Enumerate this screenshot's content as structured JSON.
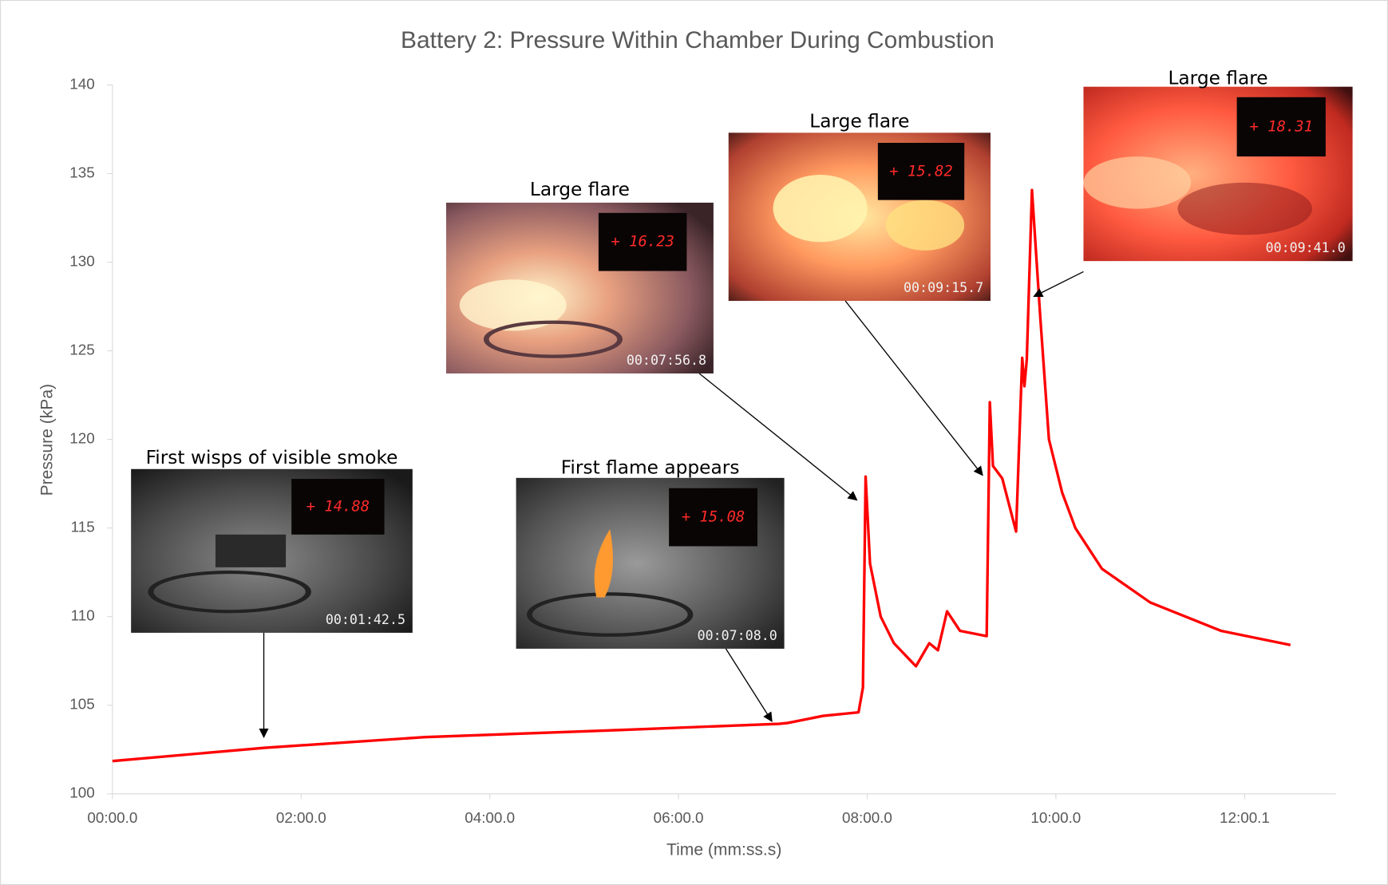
{
  "chart_data": {
    "type": "line",
    "title": "Battery 2: Pressure Within Chamber During Combustion",
    "x_label": "Time (mm:ss.s)",
    "y_label": "Pressure (kPa)",
    "color": "#ff0000",
    "grid": false,
    "xlim": [
      0,
      778
    ],
    "ylim": [
      100,
      140
    ],
    "xticks": [
      {
        "value": 0,
        "label": "00:00.0"
      },
      {
        "value": 120,
        "label": "02:00.0"
      },
      {
        "value": 240,
        "label": "04:00.0"
      },
      {
        "value": 360,
        "label": "06:00.0"
      },
      {
        "value": 480,
        "label": "08:00.0"
      },
      {
        "value": 600,
        "label": "10:00.0"
      },
      {
        "value": 720.1,
        "label": "12:00.1"
      }
    ],
    "yticks": [
      100,
      105,
      110,
      115,
      120,
      125,
      130,
      135,
      140
    ],
    "x": [
      0,
      97,
      198.7,
      322.5,
      423.9,
      429.5,
      452,
      474.5,
      477.3,
      479,
      481.8,
      488.6,
      497,
      511,
      519.5,
      525,
      530.8,
      539,
      556,
      558,
      560,
      565.9,
      574.7,
      578.6,
      580,
      581.5,
      584.8,
      590,
      595.6,
      604,
      612.4,
      629.3,
      660,
      705,
      749.2
    ],
    "values": [
      101.85,
      102.6,
      103.2,
      103.6,
      103.95,
      104.0,
      104.4,
      104.6,
      106,
      117.9,
      113,
      110,
      108.5,
      107.2,
      108.5,
      108.1,
      110.3,
      109.2,
      108.9,
      122.1,
      118.5,
      117.8,
      114.8,
      124.6,
      123.0,
      124.5,
      134.07,
      127,
      120,
      117,
      115,
      112.7,
      110.8,
      109.2,
      108.4
    ],
    "annotations": [
      {
        "label": "First wisps of visible smoke",
        "display": "+ 14.88",
        "timestamp": "00:01:42.5"
      },
      {
        "label": "First flame appears",
        "display": "+ 15.08",
        "timestamp": "00:07:08.0"
      },
      {
        "label": "Large flare",
        "display": "+ 16.23",
        "timestamp": "00:07:56.8"
      },
      {
        "label": "Large flare",
        "display": "+ 15.82",
        "timestamp": "00:09:15.7"
      },
      {
        "label": "Large flare",
        "display": "+ 18.31",
        "timestamp": "00:09:41.0"
      }
    ]
  }
}
